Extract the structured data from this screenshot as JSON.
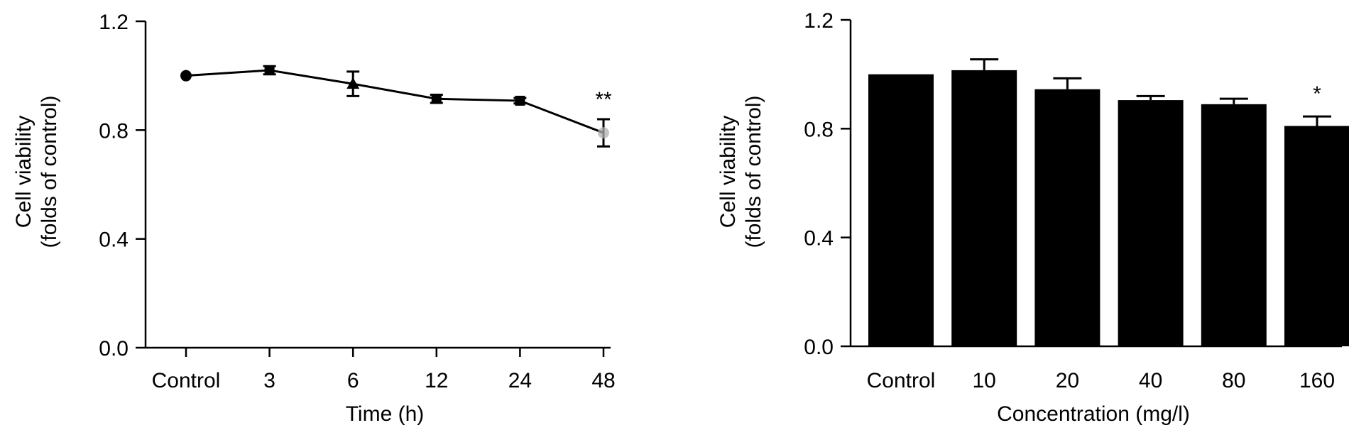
{
  "chart_data": [
    {
      "type": "line",
      "title": "",
      "xlabel": "Time (h)",
      "ylabel_lines": [
        "Cell viability",
        "(folds of control)"
      ],
      "categories": [
        "Control",
        "3",
        "6",
        "12",
        "24",
        "48"
      ],
      "values": [
        1.0,
        1.02,
        0.97,
        0.915,
        0.908,
        0.79
      ],
      "errors": [
        0.0,
        0.015,
        0.045,
        0.015,
        0.01,
        0.05
      ],
      "markers": [
        "circle",
        "square",
        "triangle",
        "square",
        "square",
        "circle"
      ],
      "annotations": [
        {
          "category": "48",
          "text": "**"
        }
      ],
      "ylim": [
        0,
        1.2
      ],
      "yticks": [
        "0.0",
        "0.4",
        "0.8",
        "1.2"
      ],
      "grid": false
    },
    {
      "type": "bar",
      "title": "",
      "xlabel": "Concentration (mg/l)",
      "ylabel_lines": [
        "Cell viability",
        "(folds of control)"
      ],
      "categories": [
        "Control",
        "10",
        "20",
        "40",
        "80",
        "160"
      ],
      "values": [
        1.0,
        1.015,
        0.945,
        0.905,
        0.89,
        0.81
      ],
      "errors": [
        0.0,
        0.04,
        0.04,
        0.015,
        0.02,
        0.035
      ],
      "annotations": [
        {
          "category": "160",
          "text": "*"
        }
      ],
      "ylim": [
        0,
        1.2
      ],
      "yticks": [
        "0.0",
        "0.4",
        "0.8",
        "1.2"
      ],
      "grid": false
    }
  ],
  "colors": {
    "line": "#000000",
    "bar_fill": "#000000",
    "highlight_marker": "#b0b0b0"
  }
}
